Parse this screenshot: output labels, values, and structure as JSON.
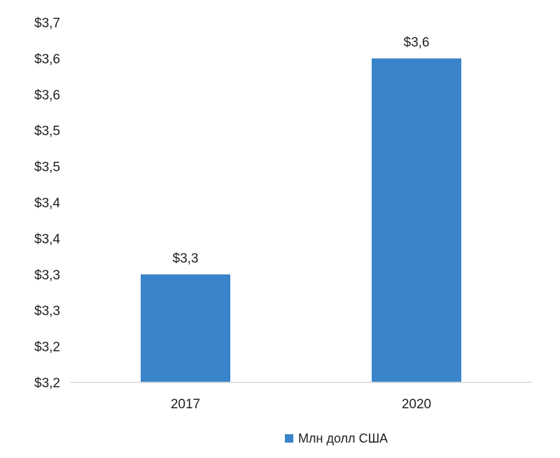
{
  "chart_data": {
    "type": "bar",
    "categories": [
      "2017",
      "2020"
    ],
    "series": [
      {
        "name": "Млн долл США",
        "values": [
          3.3,
          3.6
        ],
        "color": "#3a84c9"
      }
    ],
    "data_labels": [
      "$3,3",
      "$3,6"
    ],
    "y_ticks": [
      3.15,
      3.2,
      3.25,
      3.3,
      3.35,
      3.4,
      3.45,
      3.5,
      3.55,
      3.6,
      3.65
    ],
    "y_tick_labels": [
      "$3,2",
      "$3,2",
      "$3,3",
      "$3,3",
      "$3,4",
      "$3,4",
      "$3,5",
      "$3,5",
      "$3,6",
      "$3,6",
      "$3,7"
    ],
    "ylim": [
      3.15,
      3.65
    ],
    "title": "",
    "xlabel": "",
    "ylabel": "",
    "grid": false,
    "legend_position": "bottom",
    "axis_color": "#d9d9d9"
  }
}
